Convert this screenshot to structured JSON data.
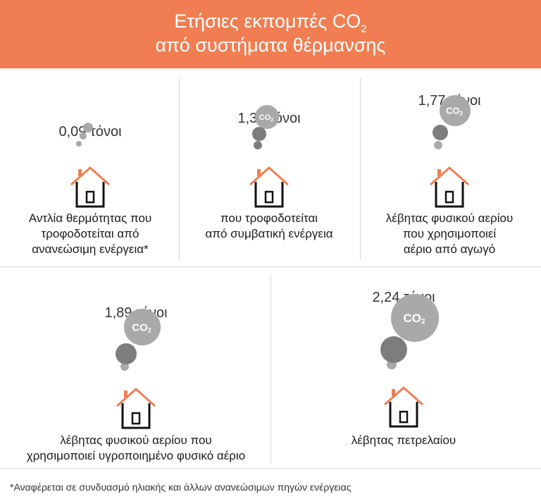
{
  "header": {
    "title_line1_pre": "Ετήσιες εκπομπές CO",
    "title_line1_sub": "2",
    "title_line2": "από συστήματα θέρμανσης"
  },
  "chart_data": {
    "type": "pictogram",
    "unit": "τόνοι",
    "items": [
      {
        "value_label": "0,09 τόνοι",
        "value": 0.09,
        "label_lines": [
          "Αντλία θερμότητας που",
          "τροφοδοτείται από",
          "ανανεώσιμη ενέργεια*"
        ]
      },
      {
        "value_label": "1,35 τόνοι",
        "value": 1.35,
        "label_lines": [
          "που τροφοδοτείται",
          "από συμβατική ενέργεια"
        ]
      },
      {
        "value_label": "1,77 τόνοι",
        "value": 1.77,
        "label_lines": [
          "λέβητας φυσικού αερίου",
          "που χρησιμοποιεί",
          "αέριο από αγωγό"
        ]
      },
      {
        "value_label": "1,89 τόνοι",
        "value": 1.89,
        "label_lines": [
          "λέβητας φυσικού αερίου που",
          "χρησιμοποιεί υγροποιημένο φυσικό αέριο"
        ]
      },
      {
        "value_label": "2,24 τόνοι",
        "value": 2.24,
        "label_lines": [
          "λέβητας πετρελαίου"
        ]
      }
    ]
  },
  "co2_text": "CO",
  "co2_sub": "2",
  "footnote": "*Αναφέρεται σε συνδυασμό ηλιακής και άλλων ανανεώσιμων πηγών ενέργειας",
  "colors": {
    "header": "#f07e52",
    "roof": "#f07e52",
    "house": "#111111",
    "smoke_light": "#a9a9a9",
    "smoke_dark": "#7d7d7d"
  }
}
